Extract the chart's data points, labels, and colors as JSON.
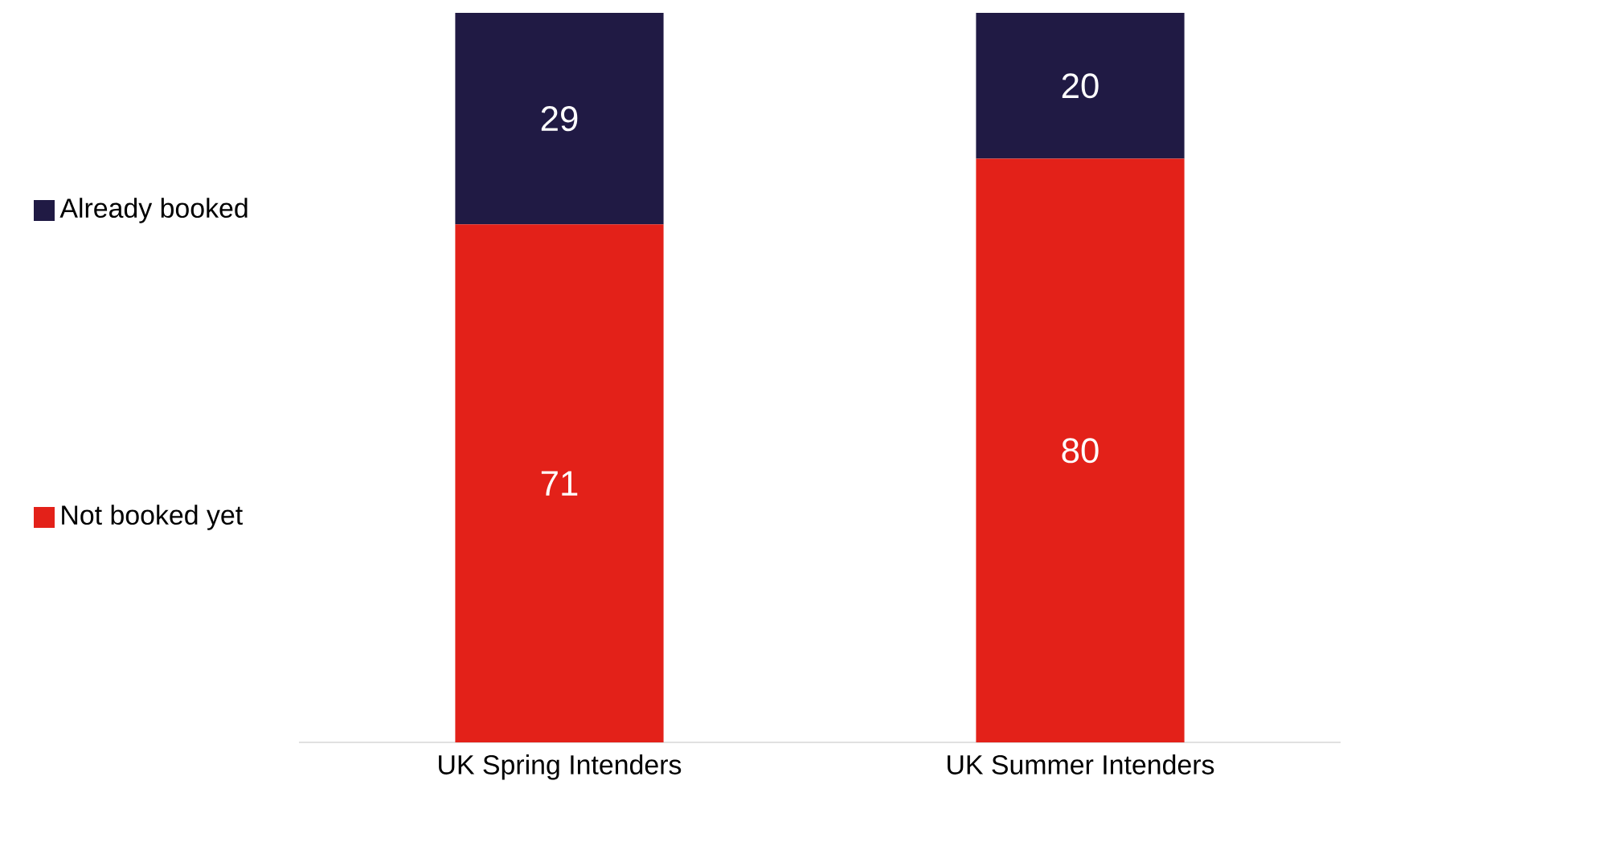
{
  "chart_data": {
    "type": "bar",
    "stacked": true,
    "categories": [
      "UK Spring Intenders",
      "UK Summer Intenders"
    ],
    "series": [
      {
        "name": "Not booked yet",
        "color": "#e32119",
        "values": [
          71,
          80
        ]
      },
      {
        "name": "Already booked",
        "color": "#201a44",
        "values": [
          29,
          20
        ]
      }
    ],
    "data_labels": true,
    "legend": "left"
  }
}
